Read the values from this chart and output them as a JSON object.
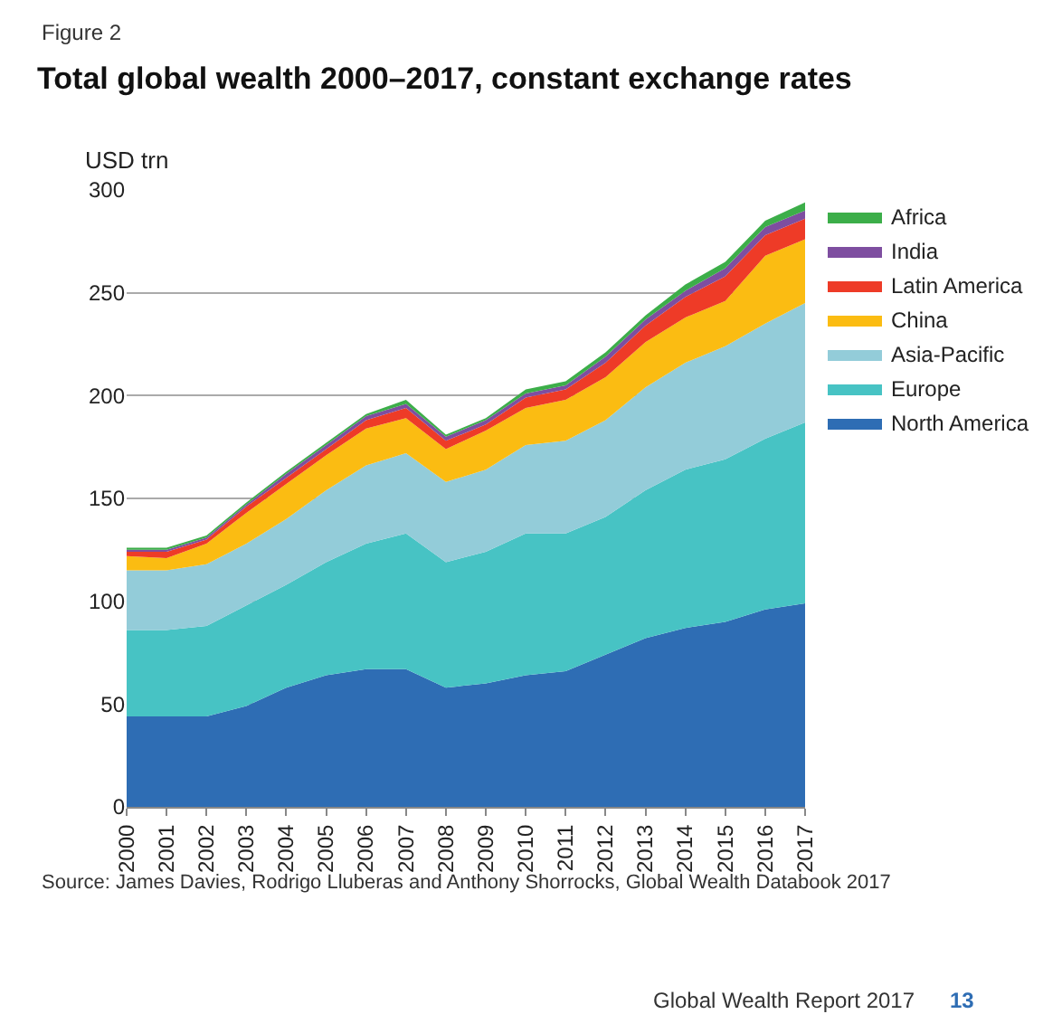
{
  "chart_data": {
    "type": "area",
    "stacked": true,
    "title": "Total global wealth 2000–2017, constant exchange rates",
    "ylabel": "USD trn",
    "annotations": [
      "Figure 2",
      "Source: James Davies, Rodrigo Lluberas and Anthony Shorrocks, Global Wealth Databook 2017",
      "Global Wealth Report 2017",
      "13"
    ],
    "categories": [
      "2000",
      "2001",
      "2002",
      "2003",
      "2004",
      "2005",
      "2006",
      "2007",
      "2008",
      "2009",
      "2010",
      "2011",
      "2012",
      "2013",
      "2014",
      "2015",
      "2016",
      "2017"
    ],
    "series": [
      {
        "name": "North America",
        "color": "#2e6db4",
        "values": [
          44,
          44,
          44,
          49,
          58,
          64,
          67,
          67,
          58,
          60,
          64,
          66,
          74,
          82,
          87,
          90,
          96,
          99
        ]
      },
      {
        "name": "Europe",
        "color": "#47c3c4",
        "values": [
          42,
          42,
          44,
          49,
          50,
          55,
          61,
          66,
          61,
          64,
          69,
          67,
          67,
          72,
          77,
          79,
          83,
          88
        ]
      },
      {
        "name": "Asia-Pacific",
        "color": "#93ccd9",
        "values": [
          29,
          29,
          30,
          30,
          32,
          35,
          38,
          39,
          39,
          40,
          43,
          45,
          47,
          50,
          52,
          55,
          56,
          58
        ]
      },
      {
        "name": "China",
        "color": "#fbbc12",
        "values": [
          7,
          6,
          10,
          15,
          17,
          17,
          18,
          17,
          16,
          19,
          18,
          20,
          21,
          22,
          22,
          22,
          33,
          31
        ]
      },
      {
        "name": "Latin America",
        "color": "#ee3b27",
        "values": [
          2,
          3,
          2,
          3,
          3,
          3,
          4,
          5,
          4,
          3,
          5,
          5,
          7,
          8,
          10,
          12,
          10,
          10
        ]
      },
      {
        "name": "India",
        "color": "#7e4ea0",
        "values": [
          1,
          1,
          1,
          1,
          2,
          2,
          2,
          2,
          2,
          2,
          2,
          2,
          3,
          3,
          3,
          4,
          4,
          4
        ]
      },
      {
        "name": "Africa",
        "color": "#3cae49",
        "values": [
          1,
          1,
          1,
          1,
          1,
          1,
          1,
          2,
          1,
          1,
          2,
          2,
          2,
          2,
          3,
          3,
          3,
          4
        ]
      }
    ],
    "ylim": [
      0,
      300
    ],
    "yticks": [
      0,
      50,
      100,
      150,
      200,
      250,
      300
    ],
    "grid": "y",
    "legend": "right"
  }
}
